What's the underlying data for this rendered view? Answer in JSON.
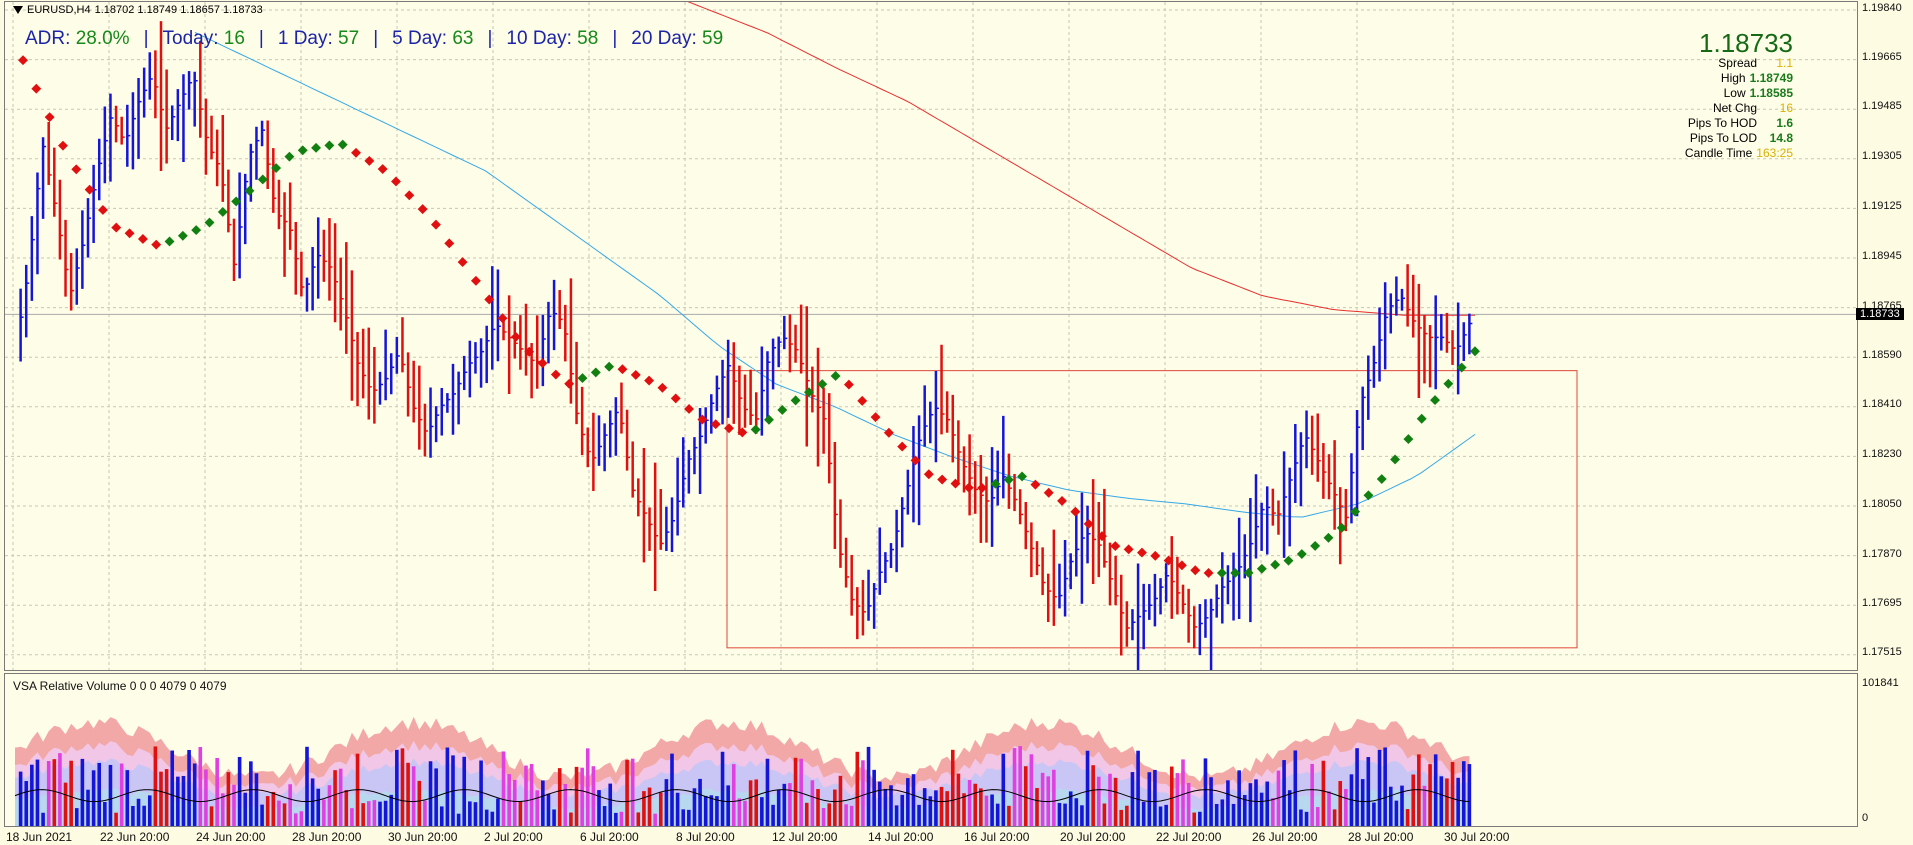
{
  "header": {
    "symbol_tf": "EURUSD,H4",
    "ohlc": "1.18702 1.18749 1.18657 1.18733"
  },
  "adr": {
    "adr_label": "ADR:",
    "adr_value": "28.0%",
    "today_label": "Today:",
    "today_value": "16",
    "d1_label": "1 Day:",
    "d1_value": "57",
    "d5_label": "5 Day:",
    "d5_value": "63",
    "d10_label": "10 Day:",
    "d10_value": "58",
    "d20_label": "20 Day:",
    "d20_value": "59"
  },
  "info": {
    "price": "1.18733",
    "spread_label": "Spread",
    "spread_value": "1.1",
    "high_label": "High",
    "high_value": "1.18749",
    "low_label": "Low",
    "low_value": "1.18585",
    "netchg_label": "Net Chg",
    "netchg_value": "16",
    "hod_label": "Pips To HOD",
    "hod_value": "1.6",
    "lod_label": "Pips To LOD",
    "lod_value": "14.8",
    "candle_label": "Candle Time",
    "candle_value": "163:25"
  },
  "price_axis": [
    "1.19840",
    "1.19665",
    "1.19485",
    "1.19305",
    "1.19125",
    "1.18945",
    "1.18765",
    "1.18590",
    "1.18410",
    "1.18230",
    "1.18050",
    "1.17870",
    "1.17695",
    "1.17515"
  ],
  "current_price": "1.18733",
  "time_axis": [
    "18 Jun 2021",
    "22 Jun 20:00",
    "24 Jun 20:00",
    "28 Jun 20:00",
    "30 Jun 20:00",
    "2 Jul 20:00",
    "6 Jul 20:00",
    "8 Jul 20:00",
    "12 Jul 20:00",
    "14 Jul 20:00",
    "16 Jul 20:00",
    "20 Jul 20:00",
    "22 Jul 20:00",
    "26 Jul 20:00",
    "28 Jul 20:00",
    "30 Jul 20:00"
  ],
  "volume": {
    "title": "VSA Relative Volume 0 0 0 4079 0 4079",
    "max_label": "101841",
    "min_label": "0"
  },
  "colors": {
    "bull": "#1515d8",
    "bear": "#e01010",
    "ma_fast": "#35a8e8",
    "ma_slow": "#e83030",
    "dot_up": "#118011",
    "dot_down": "#e01010",
    "range_box": "#e0483a"
  },
  "chart_data": {
    "type": "ohlc",
    "symbol": "EURUSD",
    "timeframe": "H4",
    "ylim": [
      1.1745,
      1.1986
    ],
    "range_box": {
      "top": 1.1853,
      "bottom": 1.1753,
      "start": "8 Jul 20:00",
      "end": "2 Aug"
    },
    "close_path": [
      1.186,
      1.189,
      1.1935,
      1.191,
      1.188,
      1.19,
      1.1925,
      1.1945,
      1.1935,
      1.195,
      1.196,
      1.194,
      1.195,
      1.196,
      1.1935,
      1.1925,
      1.189,
      1.193,
      1.194,
      1.191,
      1.1905,
      1.188,
      1.1895,
      1.189,
      1.1875,
      1.1855,
      1.1845,
      1.185,
      1.186,
      1.184,
      1.183,
      1.184,
      1.1845,
      1.1855,
      1.186,
      1.187,
      1.1865,
      1.186,
      1.1855,
      1.1875,
      1.187,
      1.1835,
      1.182,
      1.183,
      1.184,
      1.181,
      1.18,
      1.179,
      1.18,
      1.182,
      1.183,
      1.1845,
      1.1855,
      1.184,
      1.1835,
      1.186,
      1.1865,
      1.186,
      1.1845,
      1.1835,
      1.179,
      1.177,
      1.1765,
      1.178,
      1.179,
      1.181,
      1.183,
      1.184,
      1.1835,
      1.182,
      1.181,
      1.1805,
      1.1815,
      1.1805,
      1.179,
      1.1775,
      1.177,
      1.1785,
      1.1795,
      1.179,
      1.1775,
      1.176,
      1.1765,
      1.177,
      1.178,
      1.177,
      1.176,
      1.1765,
      1.1775,
      1.178,
      1.179,
      1.1805,
      1.18,
      1.1815,
      1.183,
      1.182,
      1.181,
      1.18,
      1.184,
      1.1855,
      1.1875,
      1.188,
      1.187,
      1.1865,
      1.1865,
      1.186,
      1.187
    ],
    "ma_fast": [
      1.1975,
      1.1965,
      1.1955,
      1.1945,
      1.1935,
      1.1925,
      1.191,
      1.1895,
      1.188,
      1.1862,
      1.1848,
      1.184,
      1.183,
      1.1822,
      1.1815,
      1.181,
      1.1807,
      1.1805,
      1.1802,
      1.18,
      1.1805,
      1.1815,
      1.183
    ],
    "ma_slow": [
      1.1995,
      1.1985,
      1.1975,
      1.1962,
      1.195,
      1.1935,
      1.192,
      1.1905,
      1.189,
      1.188,
      1.1875,
      1.1873,
      1.1873
    ],
    "trend_dots": [
      1.1965,
      1.193,
      1.1905,
      1.1898,
      1.1905,
      1.1918,
      1.1932,
      1.1935,
      1.1925,
      1.1908,
      1.1885,
      1.1862,
      1.1848,
      1.1855,
      1.1848,
      1.1835,
      1.183,
      1.1842,
      1.1852,
      1.1832,
      1.1815,
      1.181,
      1.1815,
      1.1805,
      1.179,
      1.1786,
      1.178,
      1.178,
      1.1785,
      1.1795,
      1.1815,
      1.184,
      1.186
    ]
  }
}
